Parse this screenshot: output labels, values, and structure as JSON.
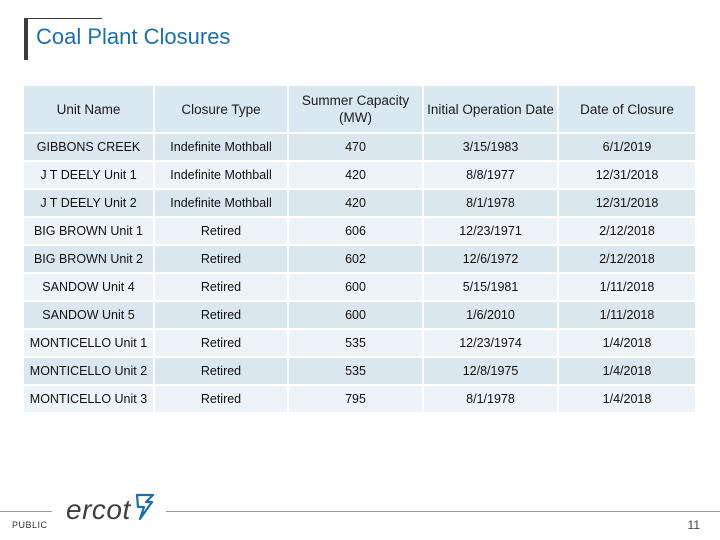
{
  "page": {
    "title": "Coal Plant Closures",
    "footer_label": "PUBLIC",
    "logo_text": "ercot",
    "logo_icon": "ercot-mark-icon",
    "page_number": "11"
  },
  "colors": {
    "title": "#1f6fa6",
    "header_bg": "#d9e8f1",
    "row_odd_bg": "#dbe7ef",
    "row_even_bg": "#edf3f7",
    "logo_mark": "#1f6fa6"
  },
  "table": {
    "headers": [
      "Unit Name",
      "Closure Type",
      "Summer Capacity (MW)",
      "Initial Operation Date",
      "Date of Closure"
    ],
    "rows": [
      [
        "GIBBONS CREEK",
        "Indefinite Mothball",
        "470",
        "3/15/1983",
        "6/1/2019"
      ],
      [
        "J T DEELY Unit 1",
        "Indefinite Mothball",
        "420",
        "8/8/1977",
        "12/31/2018"
      ],
      [
        "J T DEELY Unit 2",
        "Indefinite Mothball",
        "420",
        "8/1/1978",
        "12/31/2018"
      ],
      [
        "BIG BROWN Unit 1",
        "Retired",
        "606",
        "12/23/1971",
        "2/12/2018"
      ],
      [
        "BIG BROWN Unit 2",
        "Retired",
        "602",
        "12/6/1972",
        "2/12/2018"
      ],
      [
        "SANDOW Unit 4",
        "Retired",
        "600",
        "5/15/1981",
        "1/11/2018"
      ],
      [
        "SANDOW Unit 5",
        "Retired",
        "600",
        "1/6/2010",
        "1/11/2018"
      ],
      [
        "MONTICELLO Unit 1",
        "Retired",
        "535",
        "12/23/1974",
        "1/4/2018"
      ],
      [
        "MONTICELLO Unit 2",
        "Retired",
        "535",
        "12/8/1975",
        "1/4/2018"
      ],
      [
        "MONTICELLO Unit 3",
        "Retired",
        "795",
        "8/1/1978",
        "1/4/2018"
      ]
    ]
  }
}
